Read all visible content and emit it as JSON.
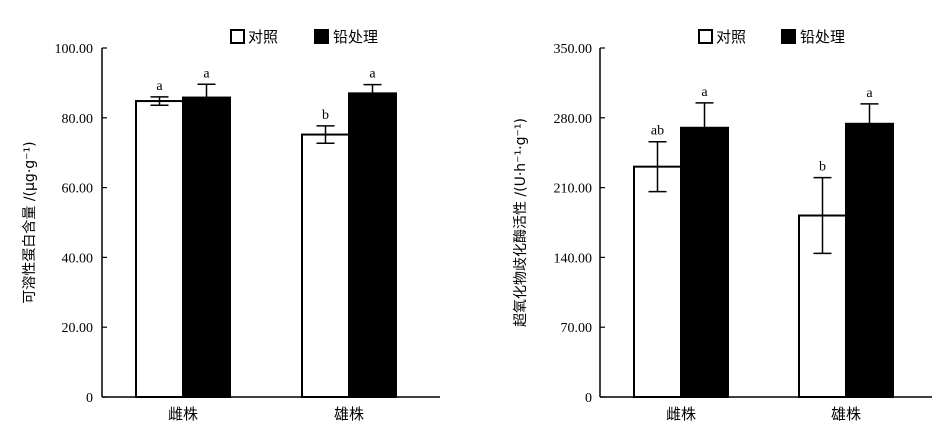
{
  "legend": {
    "control": "对照",
    "lead": "铅处理"
  },
  "chart_data": [
    {
      "type": "bar",
      "categories": [
        "雌株",
        "雄株"
      ],
      "ylabel": "可溶性蛋白含量 /(μg·g⁻¹)",
      "ylim": [
        0,
        100
      ],
      "yticks": [
        "0",
        "20.00",
        "40.00",
        "60.00",
        "80.00",
        "100.00"
      ],
      "series": [
        {
          "name": "对照",
          "color": "#ffffff",
          "values": [
            84.8,
            75.2
          ],
          "errors": [
            1.2,
            2.5
          ],
          "labels": [
            "a",
            "b"
          ]
        },
        {
          "name": "铅处理",
          "color": "#000000",
          "values": [
            85.8,
            87.0
          ],
          "errors": [
            3.8,
            2.5
          ],
          "labels": [
            "a",
            "a"
          ]
        }
      ]
    },
    {
      "type": "bar",
      "categories": [
        "雌株",
        "雄株"
      ],
      "ylabel": "超氧化物歧化酶活性 /(U·h⁻¹·g⁻¹)",
      "ylim": [
        0,
        350
      ],
      "yticks": [
        "0",
        "70.00",
        "140.00",
        "210.00",
        "280.00",
        "350.00"
      ],
      "series": [
        {
          "name": "对照",
          "color": "#ffffff",
          "values": [
            231,
            182
          ],
          "errors": [
            25,
            38
          ],
          "labels": [
            "ab",
            "b"
          ]
        },
        {
          "name": "铅处理",
          "color": "#000000",
          "values": [
            270,
            274
          ],
          "errors": [
            25,
            20
          ],
          "labels": [
            "a",
            "a"
          ]
        }
      ]
    }
  ]
}
